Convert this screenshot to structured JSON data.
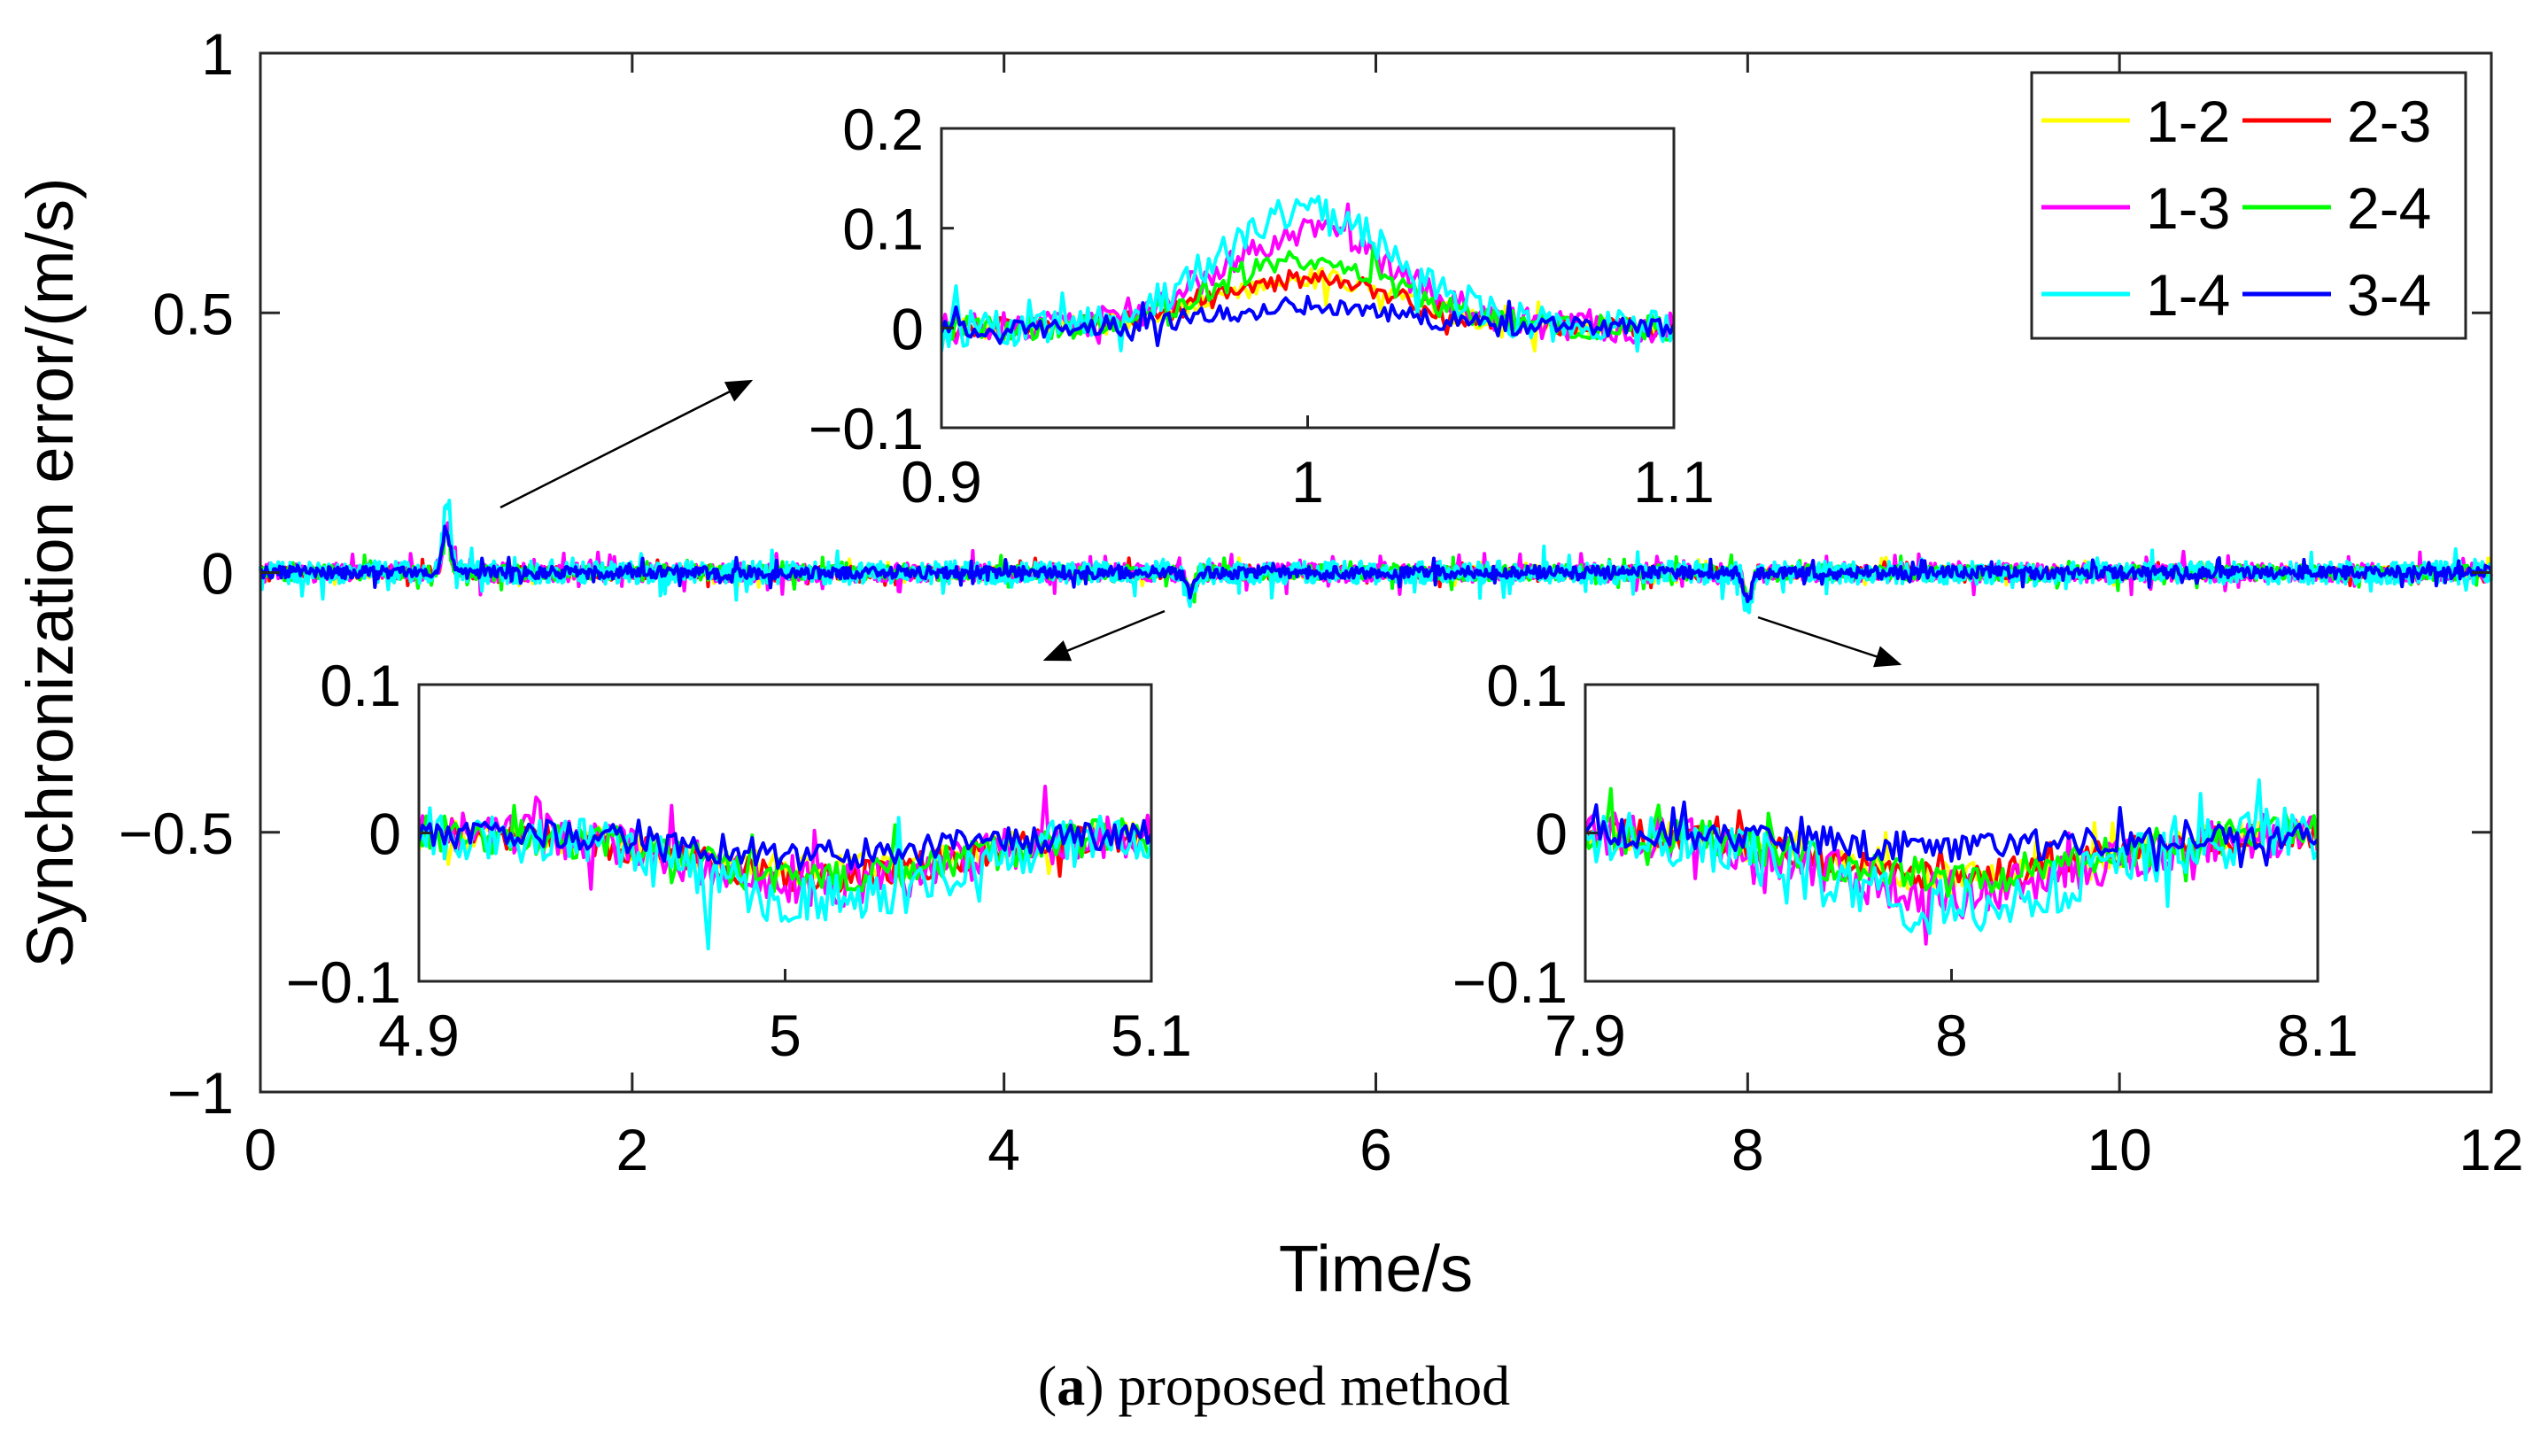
{
  "chart_data": [
    {
      "type": "line",
      "role": "main",
      "xlabel": "Time/s",
      "ylabel": "Synchronization error/(m/s)",
      "xlim": [
        0,
        12
      ],
      "ylim": [
        -1,
        1
      ],
      "xticks": [
        0,
        2,
        4,
        6,
        8,
        10,
        12
      ],
      "xtick_labels": [
        "0",
        "2",
        "4",
        "6",
        "8",
        "10",
        "12"
      ],
      "yticks": [
        1,
        0.5,
        0,
        -0.5,
        -1
      ],
      "ytick_labels": [
        "1",
        "0.5",
        "0",
        "−0.5",
        "−1"
      ],
      "grid": false,
      "legend_position": "top-right",
      "series": [
        {
          "name": "1-2",
          "color": "#ffff00",
          "amplitude": 0.012
        },
        {
          "name": "2-3",
          "color": "#ff0000",
          "amplitude": 0.012
        },
        {
          "name": "1-3",
          "color": "#ff00ff",
          "amplitude": 0.018
        },
        {
          "name": "2-4",
          "color": "#00ff00",
          "amplitude": 0.015
        },
        {
          "name": "1-4",
          "color": "#00ffff",
          "amplitude": 0.022
        },
        {
          "name": "3-4",
          "color": "#0000ff",
          "amplitude": 0.012
        }
      ],
      "events": [
        {
          "t": 1.0,
          "peak": 0.12
        },
        {
          "t": 5.0,
          "peak": -0.06
        },
        {
          "t": 8.0,
          "peak": -0.08
        }
      ]
    },
    {
      "type": "line",
      "role": "inset",
      "xlim": [
        0.9,
        1.1
      ],
      "ylim": [
        -0.1,
        0.2
      ],
      "xticks": [
        0.9,
        1,
        1.1
      ],
      "xtick_labels": [
        "0.9",
        "1",
        "1.1"
      ],
      "yticks": [
        0.2,
        0.1,
        0,
        -0.1
      ],
      "ytick_labels": [
        "0.2",
        "0.1",
        "0",
        "−0.1"
      ],
      "center": 1.0,
      "width": 0.035,
      "peaks": {
        "1-2": 0.05,
        "2-3": 0.05,
        "1-3": 0.095,
        "2-4": 0.07,
        "1-4": 0.115,
        "3-4": 0.022
      }
    },
    {
      "type": "line",
      "role": "inset",
      "xlim": [
        4.9,
        5.1
      ],
      "ylim": [
        -0.1,
        0.1
      ],
      "xticks": [
        4.9,
        5,
        5.1
      ],
      "xtick_labels": [
        "4.9",
        "5",
        "5.1"
      ],
      "yticks": [
        0.1,
        0,
        -0.1
      ],
      "ytick_labels": [
        "0.1",
        "0",
        "−0.1"
      ],
      "center": 5.01,
      "width": 0.05,
      "peaks": {
        "1-2": -0.025,
        "2-3": -0.03,
        "1-3": -0.035,
        "2-4": -0.03,
        "1-4": -0.045,
        "3-4": -0.015
      }
    },
    {
      "type": "line",
      "role": "inset",
      "xlim": [
        7.9,
        8.1
      ],
      "ylim": [
        -0.1,
        0.1
      ],
      "xticks": [
        7.9,
        8,
        8.1
      ],
      "xtick_labels": [
        "7.9",
        "8",
        "8.1"
      ],
      "yticks": [
        0.1,
        0,
        -0.1
      ],
      "ytick_labels": [
        "0.1",
        "0",
        "−0.1"
      ],
      "center": 8.0,
      "width": 0.05,
      "peaks": {
        "1-2": -0.03,
        "2-3": -0.03,
        "1-3": -0.04,
        "2-4": -0.03,
        "1-4": -0.05,
        "3-4": -0.01
      }
    }
  ],
  "caption": {
    "label": "a",
    "text": "proposed method"
  }
}
